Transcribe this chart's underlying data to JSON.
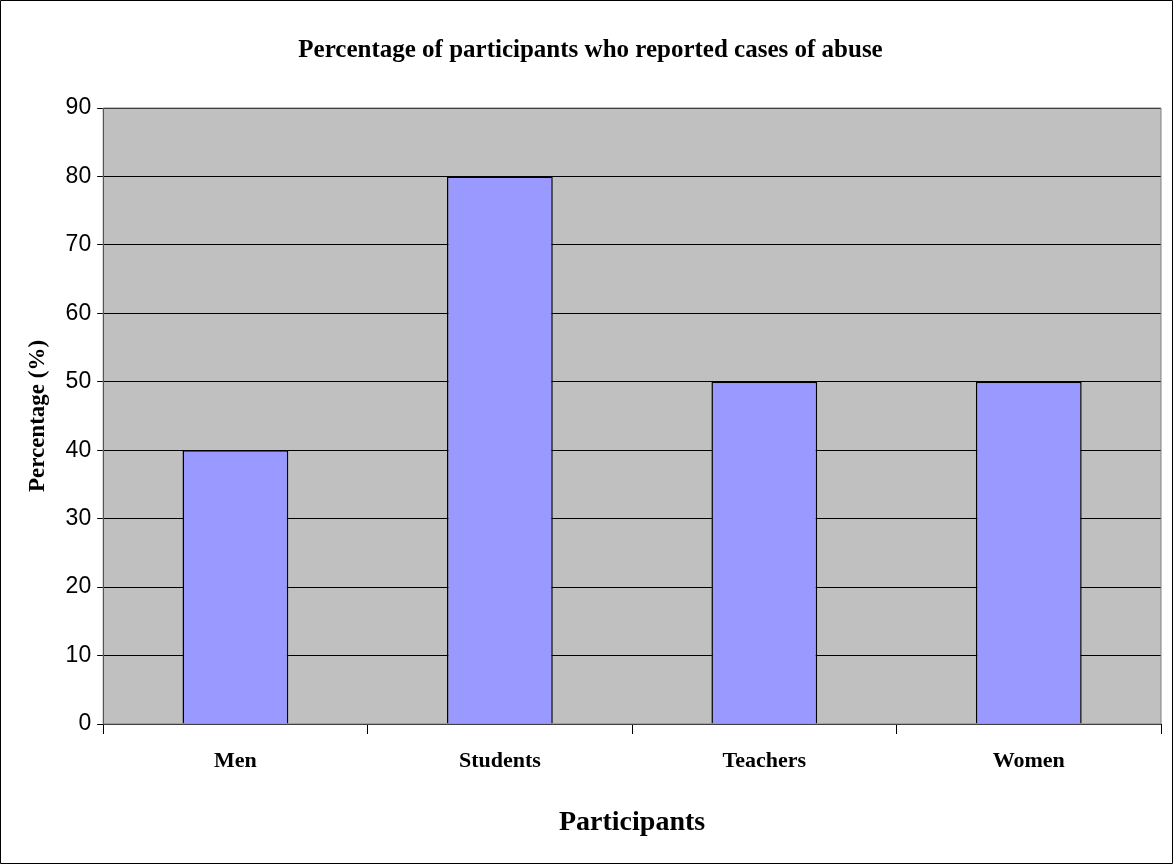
{
  "chart_data": {
    "type": "bar",
    "title": "Percentage of participants who reported cases of abuse",
    "xlabel": "Participants",
    "ylabel": "Percentage (%)",
    "categories": [
      "Men",
      "Students",
      "Teachers",
      "Women"
    ],
    "values": [
      40,
      80,
      50,
      50
    ],
    "color": "#9999ff",
    "ylim": [
      0,
      90
    ],
    "yticks": [
      0,
      10,
      20,
      30,
      40,
      50,
      60,
      70,
      80,
      90
    ],
    "grid": "y",
    "legend": false
  }
}
